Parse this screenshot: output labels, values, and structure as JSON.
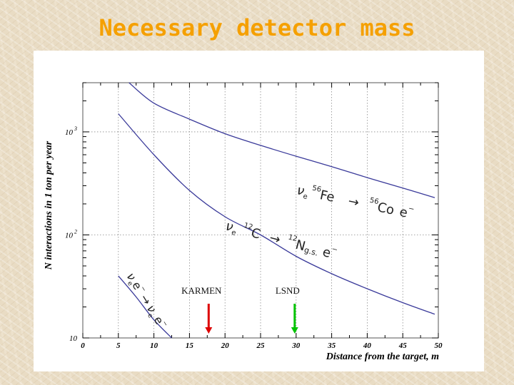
{
  "slide": {
    "title": "Necessary detector mass"
  },
  "chart_data": {
    "type": "line",
    "xlabel": "Distance from the target, m",
    "ylabel": "N interactions in 1 ton per year",
    "xlim": [
      0,
      50
    ],
    "ylim": [
      10,
      3000
    ],
    "yscale": "log",
    "grid": true,
    "x_ticks": [
      "0",
      "5",
      "10",
      "15",
      "20",
      "25",
      "30",
      "35",
      "40",
      "45",
      "50"
    ],
    "y_ticks": [
      {
        "value": 10,
        "base": "10",
        "exp": ""
      },
      {
        "value": 100,
        "base": "10",
        "exp": "2"
      },
      {
        "value": 1000,
        "base": "10",
        "exp": "3"
      }
    ],
    "series": [
      {
        "name": "νe 56Fe → 56Co e−",
        "x": [
          6.5,
          10,
          15,
          20,
          25,
          30,
          35,
          40,
          45,
          49.5
        ],
        "y": [
          3000,
          1900,
          1330,
          960,
          740,
          580,
          460,
          360,
          285,
          230
        ]
      },
      {
        "name": "νe 12C → 12Ng.s. e−",
        "x": [
          5,
          10,
          15,
          20,
          25,
          30,
          35,
          40,
          45,
          49.5
        ],
        "y": [
          1500,
          600,
          270,
          150,
          100,
          62,
          42,
          30,
          22,
          17
        ]
      },
      {
        "name": "νe e− → νe e−",
        "x": [
          5,
          7.5,
          10,
          12.5
        ],
        "y": [
          40,
          25,
          15,
          10
        ]
      }
    ],
    "markers": [
      {
        "label": "KARMEN",
        "x": 17.7,
        "color": "#dd0000"
      },
      {
        "label": "LSND",
        "x": 29.8,
        "color": "#00c400"
      }
    ],
    "curve_labels": [
      {
        "nu": "ν",
        "nu_sub": "e",
        "target_sup": "56",
        "target": "Fe",
        "arrow": "→",
        "product_sup": "56",
        "product": "Co",
        "lepton": "e",
        "lepton_sup": "−"
      },
      {
        "nu": "ν",
        "nu_sub": "e",
        "target_sup": "12",
        "target": "C",
        "arrow": "→",
        "product_sup": "12",
        "product": "N",
        "product_sub": "g.s.",
        "lepton": "e",
        "lepton_sup": "−"
      },
      {
        "nu": "ν",
        "nu_sub": "e",
        "target": "e",
        "target_sup": "−",
        "arrow": "→",
        "product": "ν",
        "product_sub": "e",
        "lepton": "e",
        "lepton_sup": "−"
      }
    ],
    "colors": {
      "curve": "#3a3a9a",
      "grid": "#8a8a8a",
      "axis": "#000000"
    }
  }
}
